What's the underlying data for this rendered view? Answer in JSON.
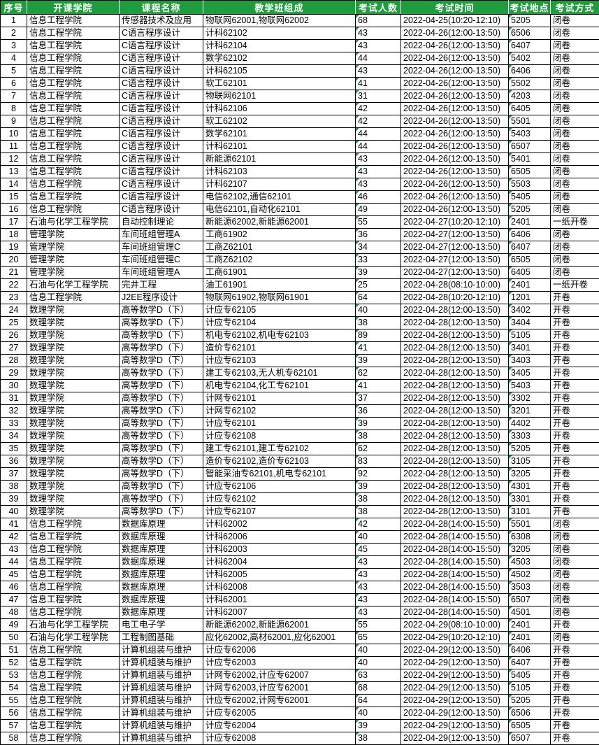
{
  "colors": {
    "header_bg": "#1F9C3D",
    "header_text": "#FFFFFF",
    "cell_flag_green": "#1E9E3C",
    "border": "#000000"
  },
  "table": {
    "columns": [
      "序号",
      "开课学院",
      "课程名称",
      "教学班组成",
      "考试人数",
      "考试时间",
      "考试地点",
      "考试方式"
    ],
    "flagged_columns": [
      4,
      6
    ],
    "rows": [
      [
        "1",
        "信息工程学院",
        "传感器技术及应用",
        "物联网62001,物联网62002",
        "68",
        "2022-04-25(10:20-12:10)",
        "5205",
        "闭卷"
      ],
      [
        "2",
        "信息工程学院",
        "C语言程序设计",
        "计科62102",
        "43",
        "2022-04-26(12:00-13:50)",
        "6506",
        "闭卷"
      ],
      [
        "3",
        "信息工程学院",
        "C语言程序设计",
        "计科62104",
        "43",
        "2022-04-26(12:00-13:50)",
        "6407",
        "闭卷"
      ],
      [
        "4",
        "信息工程学院",
        "C语言程序设计",
        "数学62102",
        "44",
        "2022-04-26(12:00-13:50)",
        "5402",
        "闭卷"
      ],
      [
        "5",
        "信息工程学院",
        "C语言程序设计",
        "计科62105",
        "43",
        "2022-04-26(12:00-13:50)",
        "6406",
        "闭卷"
      ],
      [
        "6",
        "信息工程学院",
        "C语言程序设计",
        "软工62101",
        "41",
        "2022-04-26(12:00-13:50)",
        "5502",
        "闭卷"
      ],
      [
        "7",
        "信息工程学院",
        "C语言程序设计",
        "物联网62101",
        "31",
        "2022-04-26(12:00-13:50)",
        "4203",
        "闭卷"
      ],
      [
        "8",
        "信息工程学院",
        "C语言程序设计",
        "计科62106",
        "42",
        "2022-04-26(12:00-13:50)",
        "6405",
        "闭卷"
      ],
      [
        "9",
        "信息工程学院",
        "C语言程序设计",
        "软工62102",
        "42",
        "2022-04-26(12:00-13:50)",
        "5501",
        "闭卷"
      ],
      [
        "10",
        "信息工程学院",
        "C语言程序设计",
        "数学62101",
        "44",
        "2022-04-26(12:00-13:50)",
        "5403",
        "闭卷"
      ],
      [
        "11",
        "信息工程学院",
        "C语言程序设计",
        "计科62101",
        "44",
        "2022-04-26(12:00-13:50)",
        "6507",
        "闭卷"
      ],
      [
        "12",
        "信息工程学院",
        "C语言程序设计",
        "新能源62101",
        "43",
        "2022-04-26(12:00-13:50)",
        "5401",
        "闭卷"
      ],
      [
        "13",
        "信息工程学院",
        "C语言程序设计",
        "计科62103",
        "43",
        "2022-04-26(12:00-13:50)",
        "6505",
        "闭卷"
      ],
      [
        "14",
        "信息工程学院",
        "C语言程序设计",
        "计科62107",
        "43",
        "2022-04-26(12:00-13:50)",
        "5503",
        "闭卷"
      ],
      [
        "15",
        "信息工程学院",
        "C语言程序设计",
        "电信62102,通信62101",
        "46",
        "2022-04-26(12:00-13:50)",
        "5405",
        "闭卷"
      ],
      [
        "16",
        "信息工程学院",
        "C语言程序设计",
        "电信62101,自动化62101",
        "49",
        "2022-04-26(12:00-13:50)",
        "5205",
        "闭卷"
      ],
      [
        "17",
        "石油与化学工程学院",
        "自动控制理论",
        "新能源62002,新能源62001",
        "55",
        "2022-04-27(10:20-12:10)",
        "2401",
        "一纸开卷"
      ],
      [
        "18",
        "管理学院",
        "车间班组管理A",
        "工商61902",
        "36",
        "2022-04-27(12:00-13:50)",
        "6406",
        "闭卷"
      ],
      [
        "19",
        "管理学院",
        "车间班组管理C",
        "工商Z62101",
        "34",
        "2022-04-27(12:00-13:50)",
        "6407",
        "闭卷"
      ],
      [
        "20",
        "管理学院",
        "车间班组管理C",
        "工商Z62102",
        "33",
        "2022-04-27(12:00-13:50)",
        "6505",
        "闭卷"
      ],
      [
        "21",
        "管理学院",
        "车间班组管理A",
        "工商61901",
        "39",
        "2022-04-27(12:00-13:50)",
        "6405",
        "闭卷"
      ],
      [
        "22",
        "石油与化学工程学院",
        "完井工程",
        "油工61901",
        "25",
        "2022-04-28(08:10-10:00)",
        "2401",
        "一纸开卷"
      ],
      [
        "23",
        "信息工程学院",
        "J2EE程序设计",
        "物联网61902,物联网61901",
        "64",
        "2022-04-28(10:20-12:10)",
        "1201",
        "开卷"
      ],
      [
        "24",
        "数理学院",
        "高等数学D（下）",
        "计应专62105",
        "40",
        "2022-04-28(12:00-13:50)",
        "3402",
        "开卷"
      ],
      [
        "25",
        "数理学院",
        "高等数学D（下）",
        "计应专62104",
        "38",
        "2022-04-28(12:00-13:50)",
        "3404",
        "开卷"
      ],
      [
        "26",
        "数理学院",
        "高等数学D（下）",
        "机电专62102,机电专62103",
        "89",
        "2022-04-28(12:00-13:50)",
        "5105",
        "开卷"
      ],
      [
        "27",
        "数理学院",
        "高等数学D（下）",
        "造价专62101",
        "41",
        "2022-04-28(12:00-13:50)",
        "3401",
        "开卷"
      ],
      [
        "28",
        "数理学院",
        "高等数学D（下）",
        "计应专62103",
        "39",
        "2022-04-28(12:00-13:50)",
        "3403",
        "开卷"
      ],
      [
        "29",
        "数理学院",
        "高等数学D（下）",
        "建工专62103,无人机专62101",
        "62",
        "2022-04-28(12:00-13:50)",
        "3405",
        "开卷"
      ],
      [
        "30",
        "数理学院",
        "高等数学D（下）",
        "机电专62104,化工专62101",
        "41",
        "2022-04-28(12:00-13:50)",
        "5403",
        "开卷"
      ],
      [
        "31",
        "数理学院",
        "高等数学D（下）",
        "计网专62101",
        "37",
        "2022-04-28(12:00-13:50)",
        "3302",
        "开卷"
      ],
      [
        "32",
        "数理学院",
        "高等数学D（下）",
        "计网专62102",
        "36",
        "2022-04-28(12:00-13:50)",
        "3201",
        "开卷"
      ],
      [
        "33",
        "数理学院",
        "高等数学D（下）",
        "计应专62101",
        "39",
        "2022-04-28(12:00-13:50)",
        "4402",
        "开卷"
      ],
      [
        "34",
        "数理学院",
        "高等数学D（下）",
        "计应专62108",
        "38",
        "2022-04-28(12:00-13:50)",
        "3303",
        "开卷"
      ],
      [
        "35",
        "数理学院",
        "高等数学D（下）",
        "建工专62101,建工专62102",
        "62",
        "2022-04-28(12:00-13:50)",
        "5205",
        "开卷"
      ],
      [
        "36",
        "数理学院",
        "高等数学D（下）",
        "造价专62102,造价专62103",
        "83",
        "2022-04-28(12:00-13:50)",
        "3105",
        "开卷"
      ],
      [
        "37",
        "数理学院",
        "高等数学D（下）",
        "智能采油专62101,机电专62101",
        "92",
        "2022-04-28(12:00-13:50)",
        "3205",
        "开卷"
      ],
      [
        "38",
        "数理学院",
        "高等数学D（下）",
        "计应专62106",
        "39",
        "2022-04-28(12:00-13:50)",
        "4301",
        "开卷"
      ],
      [
        "39",
        "数理学院",
        "高等数学D（下）",
        "计应专62102",
        "38",
        "2022-04-28(12:00-13:50)",
        "3301",
        "开卷"
      ],
      [
        "40",
        "数理学院",
        "高等数学D（下）",
        "计应专62107",
        "38",
        "2022-04-28(12:00-13:50)",
        "3101",
        "开卷"
      ],
      [
        "41",
        "信息工程学院",
        "数据库原理",
        "计科62002",
        "42",
        "2022-04-28(14:00-15:50)",
        "5501",
        "闭卷"
      ],
      [
        "42",
        "信息工程学院",
        "数据库原理",
        "计科62006",
        "40",
        "2022-04-28(14:00-15:50)",
        "6308",
        "闭卷"
      ],
      [
        "43",
        "信息工程学院",
        "数据库原理",
        "计科62003",
        "45",
        "2022-04-28(14:00-15:50)",
        "3205",
        "闭卷"
      ],
      [
        "44",
        "信息工程学院",
        "数据库原理",
        "计科62004",
        "43",
        "2022-04-28(14:00-15:50)",
        "4503",
        "闭卷"
      ],
      [
        "45",
        "信息工程学院",
        "数据库原理",
        "计科62005",
        "43",
        "2022-04-28(14:00-15:50)",
        "4502",
        "闭卷"
      ],
      [
        "46",
        "信息工程学院",
        "数据库原理",
        "计科62008",
        "43",
        "2022-04-28(14:00-15:50)",
        "3503",
        "闭卷"
      ],
      [
        "47",
        "信息工程学院",
        "数据库原理",
        "计科62001",
        "43",
        "2022-04-28(14:00-15:50)",
        "6507",
        "闭卷"
      ],
      [
        "48",
        "信息工程学院",
        "数据库原理",
        "计科62007",
        "43",
        "2022-04-28(14:00-15:50)",
        "4501",
        "闭卷"
      ],
      [
        "49",
        "石油与化学工程学院",
        "电工电子学",
        "新能源62002,新能源62001",
        "55",
        "2022-04-29(08:10-10:00)",
        "2401",
        "开卷"
      ],
      [
        "50",
        "石油与化学工程学院",
        "工程制图基础",
        "应化62002,高材62001,应化62001",
        "65",
        "2022-04-29(10:20-12:10)",
        "2401",
        "闭卷"
      ],
      [
        "51",
        "信息工程学院",
        "计算机组装与维护",
        "计应专62006",
        "40",
        "2022-04-29(12:00-13:50)",
        "6406",
        "开卷"
      ],
      [
        "52",
        "信息工程学院",
        "计算机组装与维护",
        "计应专62003",
        "40",
        "2022-04-29(12:00-13:50)",
        "6407",
        "开卷"
      ],
      [
        "53",
        "信息工程学院",
        "计算机组装与维护",
        "计网专62002,计应专62007",
        "63",
        "2022-04-29(12:00-13:50)",
        "5405",
        "开卷"
      ],
      [
        "54",
        "信息工程学院",
        "计算机组装与维护",
        "计网专62003,计应专62001",
        "68",
        "2022-04-29(12:00-13:50)",
        "5105",
        "开卷"
      ],
      [
        "55",
        "信息工程学院",
        "计算机组装与维护",
        "计应专62002,计网专62001",
        "64",
        "2022-04-29(12:00-13:50)",
        "5205",
        "开卷"
      ],
      [
        "56",
        "信息工程学院",
        "计算机组装与维护",
        "计应专62005",
        "40",
        "2022-04-29(12:00-13:50)",
        "6506",
        "开卷"
      ],
      [
        "57",
        "信息工程学院",
        "计算机组装与维护",
        "计应专62004",
        "39",
        "2022-04-29(12:00-13:50)",
        "6505",
        "开卷"
      ],
      [
        "58",
        "信息工程学院",
        "计算机组装与维护",
        "计应专62008",
        "38",
        "2022-04-29(12:00-13:50)",
        "6507",
        "开卷"
      ]
    ]
  }
}
